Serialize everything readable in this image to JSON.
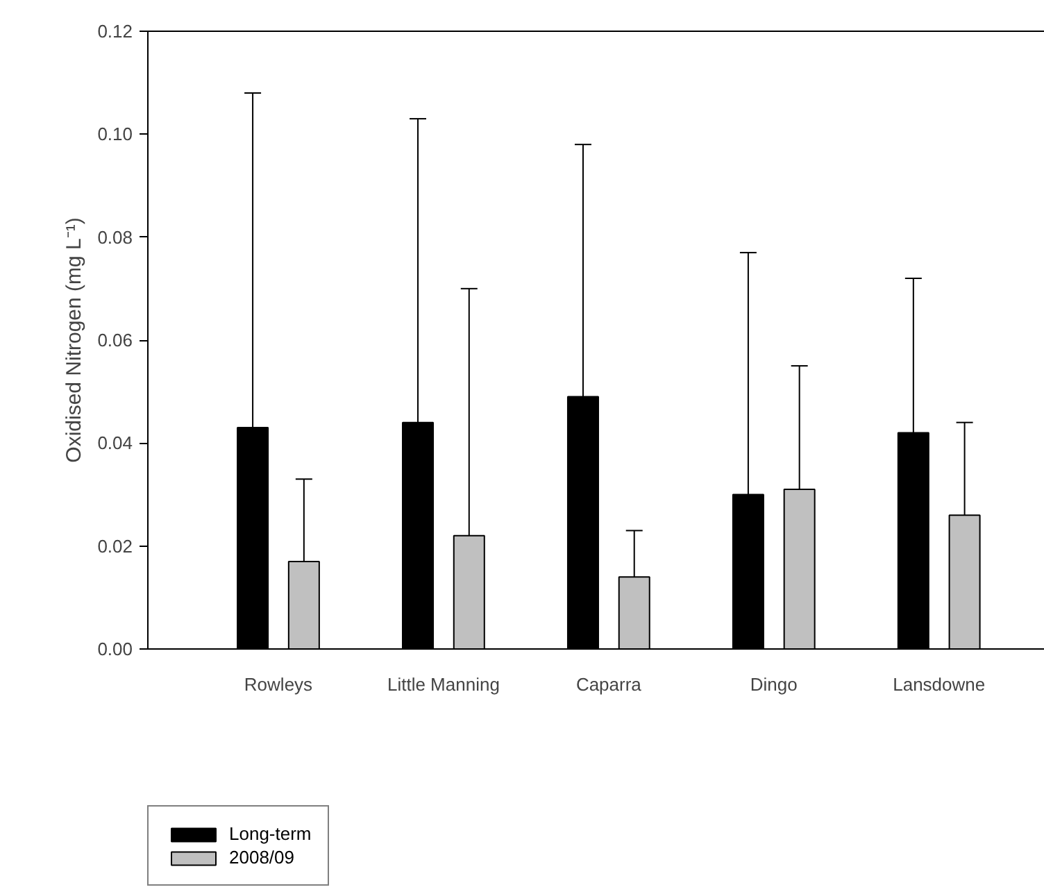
{
  "chart_data": {
    "type": "bar",
    "ylabel": "Oxidised Nitrogen (mg L⁻¹)",
    "categories": [
      "Rowleys",
      "Little Manning",
      "Caparra",
      "Dingo",
      "Lansdowne"
    ],
    "series": [
      {
        "name": "Long-term",
        "color": "#000000",
        "values": [
          0.043,
          0.044,
          0.049,
          0.03,
          0.042
        ],
        "errors": [
          [
            0.043,
            0.108
          ],
          [
            0.044,
            0.103
          ],
          [
            0.049,
            0.098
          ],
          [
            0.03,
            0.077
          ],
          [
            0.042,
            0.072
          ]
        ]
      },
      {
        "name": "2008/09",
        "color": "#c0c0c0",
        "values": [
          0.017,
          0.022,
          0.014,
          0.031,
          0.026
        ],
        "errors": [
          [
            0.017,
            0.033
          ],
          [
            0.022,
            0.07
          ],
          [
            0.014,
            0.023
          ],
          [
            0.031,
            0.055
          ],
          [
            0.026,
            0.044
          ]
        ]
      }
    ],
    "ylim": [
      0,
      0.12
    ],
    "yticks": [
      {
        "value": 0,
        "label": "0.00"
      },
      {
        "value": 0.02,
        "label": "0.02"
      },
      {
        "value": 0.04,
        "label": "0.04"
      },
      {
        "value": 0.06,
        "label": "0.06"
      },
      {
        "value": 0.08,
        "label": "0.08"
      },
      {
        "value": 0.1,
        "label": "0.10"
      },
      {
        "value": 0.12,
        "label": "0.12"
      }
    ],
    "grid": false,
    "legend": "bottom left"
  }
}
